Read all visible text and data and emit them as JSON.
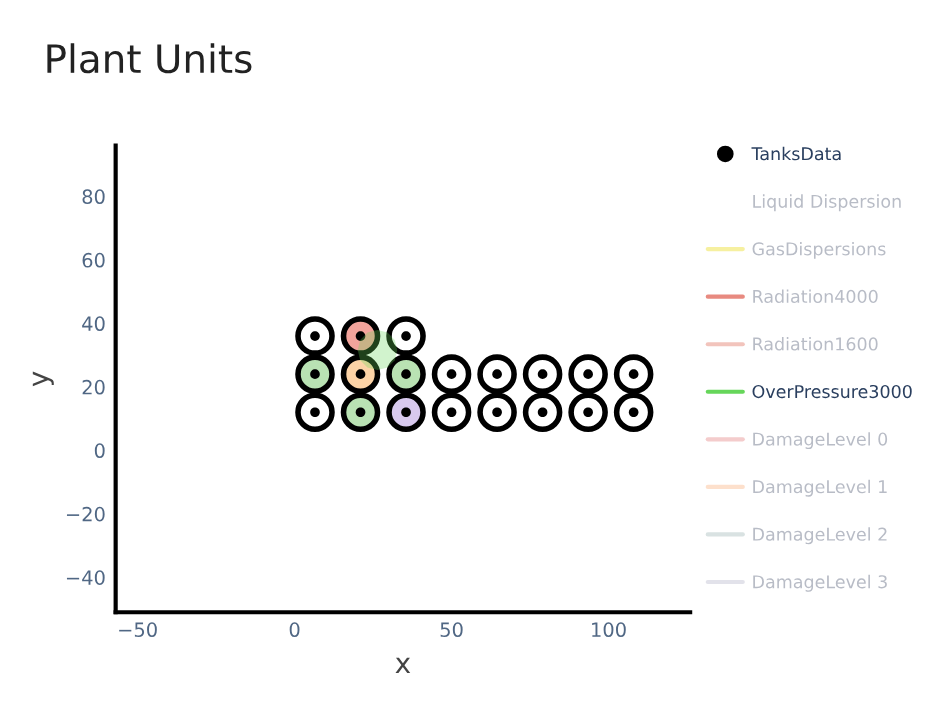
{
  "chart_data": {
    "type": "scatter",
    "title": "Plant Units",
    "xlabel": "x",
    "ylabel": "y",
    "xlim": [
      -57,
      126
    ],
    "ylim": [
      -51,
      96
    ],
    "xticks": [
      {
        "value": -50,
        "label": "−50"
      },
      0,
      50,
      100
    ],
    "yticks": [
      {
        "value": -40,
        "label": "−40"
      },
      {
        "value": -20,
        "label": "−20"
      },
      0,
      20,
      40,
      60,
      80
    ],
    "grid": false,
    "legend": "right",
    "series": [
      {
        "name": "TanksData",
        "marker": "circle",
        "color": "#000000",
        "x": [
          6.5,
          21,
          35.5,
          6.5,
          21,
          35.5,
          50,
          64.5,
          79,
          93.5,
          108,
          6.5,
          21,
          35.5,
          50,
          64.5,
          79,
          93.5,
          108
        ],
        "values": [
          36,
          36,
          36,
          24,
          24,
          24,
          24,
          24,
          24,
          24,
          24,
          12,
          12,
          12,
          12,
          12,
          12,
          12,
          12
        ],
        "colors": [
          "#ffffff",
          "#f2a39b",
          "#ffffff",
          "#b9e2b3",
          "#fcd3a6",
          "#b9e2b3",
          "#ffffff",
          "#ffffff",
          "#ffffff",
          "#ffffff",
          "#ffffff",
          "#ffffff",
          "#b9e2b3",
          "#d8c9ee",
          "#ffffff",
          "#ffffff",
          "#ffffff",
          "#ffffff",
          "#ffffff"
        ]
      },
      {
        "name": "Liquid Dispersion",
        "type": "line",
        "color": null
      },
      {
        "name": "GasDispersions",
        "type": "line",
        "color": "#f6f0a0"
      },
      {
        "name": "Radiation4000",
        "type": "line",
        "color": "#e88a80"
      },
      {
        "name": "Radiation1600",
        "type": "line",
        "color": "#f2c4bc"
      },
      {
        "name": "OverPressure3000",
        "type": "area",
        "color": "#66d65a",
        "x": [
          32.7,
          31.9,
          29.6,
          26.4,
          23.2,
          20.9,
          20.1,
          20.9,
          23.2,
          26.4,
          29.6,
          31.9,
          32.7
        ],
        "values": [
          31.6,
          34.8,
          37.1,
          37.9,
          37.1,
          34.8,
          31.6,
          28.4,
          26.1,
          25.3,
          26.1,
          28.4,
          31.6
        ]
      },
      {
        "name": "DamageLevel 0",
        "type": "line",
        "color": "#f4cccc"
      },
      {
        "name": "DamageLevel 1",
        "type": "line",
        "color": "#fde0cc"
      },
      {
        "name": "DamageLevel 2",
        "type": "line",
        "color": "#d9e2e2"
      },
      {
        "name": "DamageLevel 3",
        "type": "line",
        "color": "#e2e2ea"
      }
    ]
  }
}
